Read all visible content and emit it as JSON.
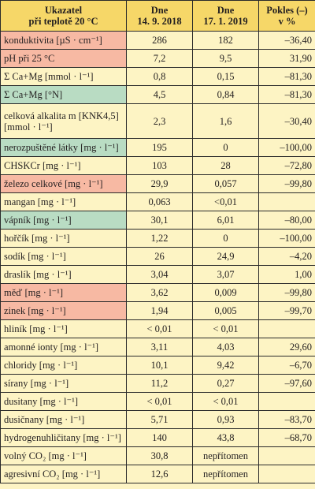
{
  "headers": [
    {
      "line1": "Ukazatel",
      "line2": "při teplotě 20 °C"
    },
    {
      "line1": "Dne",
      "line2": "14. 9. 2018"
    },
    {
      "line1": "Dne",
      "line2": "17. 1. 2019"
    },
    {
      "line1": "Pokles (–)",
      "line2": "v %"
    }
  ],
  "rows": [
    {
      "name": "konduktivita [µS · cm⁻¹]",
      "v1": "286",
      "v2": "182",
      "v3": "–36,40",
      "hl": "red"
    },
    {
      "name": "pH při 25 °C",
      "v1": "7,2",
      "v2": "9,5",
      "v3": "31,90",
      "hl": "red"
    },
    {
      "name": "Σ Ca+Mg [mmol · l⁻¹]",
      "v1": "0,8",
      "v2": "0,15",
      "v3": "–81,30",
      "hl": ""
    },
    {
      "name": "Σ Ca+Mg [°N]",
      "v1": "4,5",
      "v2": "0,84",
      "v3": "–81,30",
      "hl": "green"
    },
    {
      "name": "celková alkalita m [KNK4,5] [mmol · l⁻¹]",
      "v1": "2,3",
      "v2": "1,6",
      "v3": "–30,40",
      "hl": ""
    },
    {
      "name": "nerozpuštěné látky [mg · l⁻¹]",
      "v1": "195",
      "v2": "0",
      "v3": "–100,00",
      "hl": "green"
    },
    {
      "name": "CHSKCr [mg · l⁻¹]",
      "v1": "103",
      "v2": "28",
      "v3": "–72,80",
      "hl": ""
    },
    {
      "name": "železo celkové [mg · l⁻¹]",
      "v1": "29,9",
      "v2": "0,057",
      "v3": "–99,80",
      "hl": "red"
    },
    {
      "name": "mangan [mg · l⁻¹]",
      "v1": "0,063",
      "v2": "<0,01",
      "v3": "",
      "hl": ""
    },
    {
      "name": "vápník [mg · l⁻¹]",
      "v1": "30,1",
      "v2": "6,01",
      "v3": "–80,00",
      "hl": "green"
    },
    {
      "name": "hořčík [mg · l⁻¹]",
      "v1": "1,22",
      "v2": "0",
      "v3": "–100,00",
      "hl": ""
    },
    {
      "name": "sodík [mg · l⁻¹]",
      "v1": "26",
      "v2": "24,9",
      "v3": "–4,20",
      "hl": ""
    },
    {
      "name": "draslík [mg · l⁻¹]",
      "v1": "3,04",
      "v2": "3,07",
      "v3": "1,00",
      "hl": ""
    },
    {
      "name": "měď [mg · l⁻¹]",
      "v1": "3,62",
      "v2": "0,009",
      "v3": "–99,80",
      "hl": "red"
    },
    {
      "name": "zinek [mg · l⁻¹]",
      "v1": "1,94",
      "v2": "0,005",
      "v3": "–99,70",
      "hl": "red"
    },
    {
      "name": "hliník [mg · l⁻¹]",
      "v1": "< 0,01",
      "v2": "< 0,01",
      "v3": "",
      "hl": ""
    },
    {
      "name": "amonné ionty [mg · l⁻¹]",
      "v1": "3,11",
      "v2": "4,03",
      "v3": "29,60",
      "hl": ""
    },
    {
      "name": "chloridy [mg · l⁻¹]",
      "v1": "10,1",
      "v2": "9,42",
      "v3": "–6,70",
      "hl": ""
    },
    {
      "name": "sírany [mg · l⁻¹]",
      "v1": "11,2",
      "v2": "0,27",
      "v3": "–97,60",
      "hl": ""
    },
    {
      "name": "dusitany [mg · l⁻¹]",
      "v1": "< 0,01",
      "v2": "< 0,01",
      "v3": "",
      "hl": ""
    },
    {
      "name": "dusičnany [mg · l⁻¹]",
      "v1": "5,71",
      "v2": "0,93",
      "v3": "–83,70",
      "hl": ""
    },
    {
      "name": "hydrogenuhličitany [mg · l⁻¹]",
      "v1": "140",
      "v2": "43,8",
      "v3": "–68,70",
      "hl": ""
    },
    {
      "name": "volný CO₂ [mg · l⁻¹]",
      "v1": "30,8",
      "v2": "nepřítomen",
      "v3": "",
      "hl": ""
    },
    {
      "name": "agresivní CO₂ [mg · l⁻¹]",
      "v1": "12,6",
      "v2": "nepřítomen",
      "v3": "",
      "hl": ""
    }
  ]
}
